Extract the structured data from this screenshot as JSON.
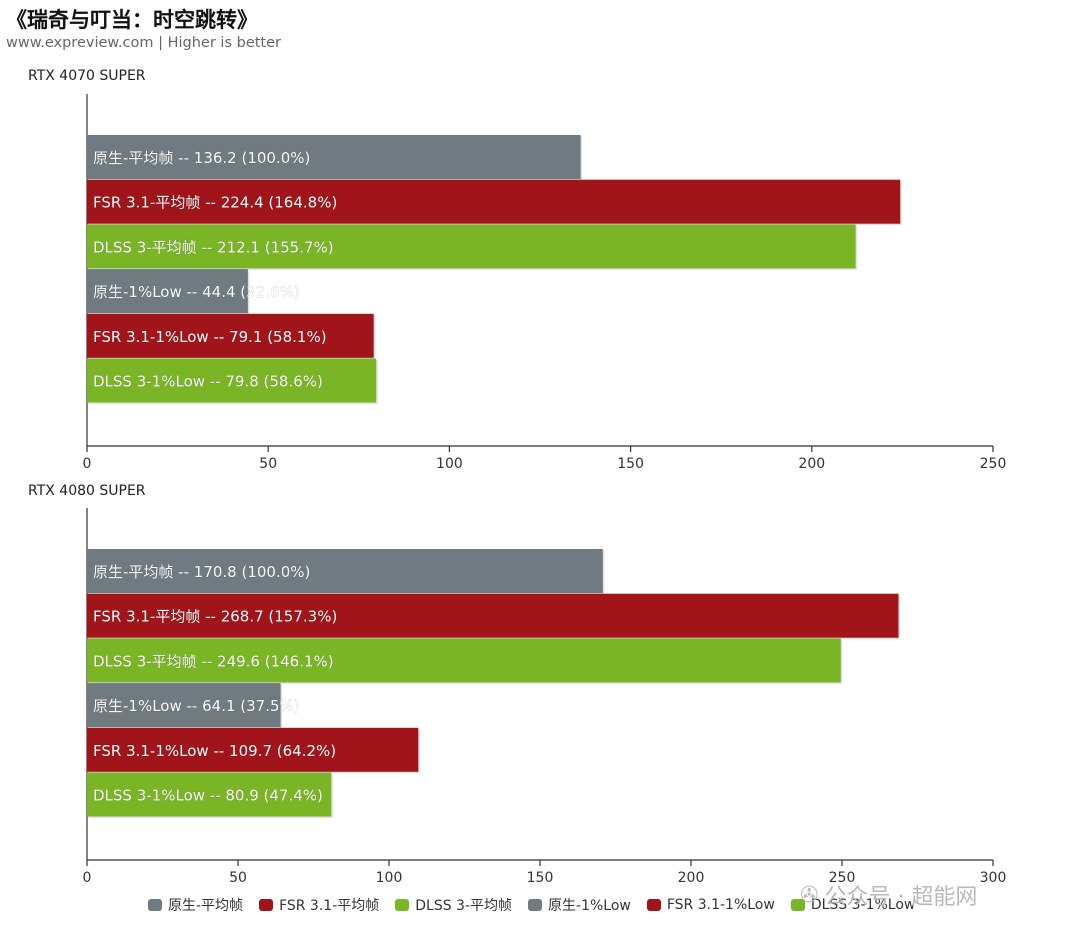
{
  "header": {
    "title": "《瑞奇与叮当：时空跳转》",
    "subtitle": "www.expreview.com | Higher is better"
  },
  "colors": {
    "gray": "#6f7b80",
    "red": "#a0141a",
    "green": "#7ab526"
  },
  "chart_data": [
    {
      "type": "bar",
      "orientation": "horizontal",
      "title": "RTX 4070 SUPER",
      "xlim": [
        0,
        250
      ],
      "xticks": [
        0,
        50,
        100,
        150,
        200,
        250
      ],
      "bars": [
        {
          "series": "原生-平均帧",
          "value": 136.2,
          "label": "原生-平均帧  --  136.2 (100.0%)",
          "color": "gray"
        },
        {
          "series": "FSR 3.1-平均帧",
          "value": 224.4,
          "label": "FSR 3.1-平均帧  --  224.4 (164.8%)",
          "color": "red"
        },
        {
          "series": "DLSS 3-平均帧",
          "value": 212.1,
          "label": "DLSS 3-平均帧  --  212.1 (155.7%)",
          "color": "green"
        },
        {
          "series": "原生-1%Low",
          "value": 44.4,
          "label": "原生-1%Low  --  44.4 (32.6%)",
          "color": "gray"
        },
        {
          "series": "FSR 3.1-1%Low",
          "value": 79.1,
          "label": "FSR 3.1-1%Low  --  79.1 (58.1%)",
          "color": "red"
        },
        {
          "series": "DLSS 3-1%Low",
          "value": 79.8,
          "label": "DLSS 3-1%Low  --  79.8 (58.6%)",
          "color": "green"
        }
      ]
    },
    {
      "type": "bar",
      "orientation": "horizontal",
      "title": "RTX 4080 SUPER",
      "xlim": [
        0,
        300
      ],
      "xticks": [
        0,
        50,
        100,
        150,
        200,
        250,
        300
      ],
      "bars": [
        {
          "series": "原生-平均帧",
          "value": 170.8,
          "label": "原生-平均帧  --  170.8 (100.0%)",
          "color": "gray"
        },
        {
          "series": "FSR 3.1-平均帧",
          "value": 268.7,
          "label": "FSR 3.1-平均帧  --  268.7 (157.3%)",
          "color": "red"
        },
        {
          "series": "DLSS 3-平均帧",
          "value": 249.6,
          "label": "DLSS 3-平均帧  --  249.6 (146.1%)",
          "color": "green"
        },
        {
          "series": "原生-1%Low",
          "value": 64.1,
          "label": "原生-1%Low  --  64.1 (37.5%)",
          "color": "gray"
        },
        {
          "series": "FSR 3.1-1%Low",
          "value": 109.7,
          "label": "FSR 3.1-1%Low  --  109.7 (64.2%)",
          "color": "red"
        },
        {
          "series": "DLSS 3-1%Low",
          "value": 80.9,
          "label": "DLSS 3-1%Low  --  80.9 (47.4%)",
          "color": "green"
        }
      ]
    }
  ],
  "legend": [
    {
      "label": "原生-平均帧",
      "color": "gray"
    },
    {
      "label": "FSR 3.1-平均帧",
      "color": "red"
    },
    {
      "label": "DLSS 3-平均帧",
      "color": "green"
    },
    {
      "label": "原生-1%Low",
      "color": "gray"
    },
    {
      "label": "FSR 3.1-1%Low",
      "color": "red"
    },
    {
      "label": "DLSS 3-1%Low",
      "color": "green"
    }
  ],
  "watermark": {
    "icon": "wechat-icon",
    "text": "公众号 · 超能网"
  }
}
